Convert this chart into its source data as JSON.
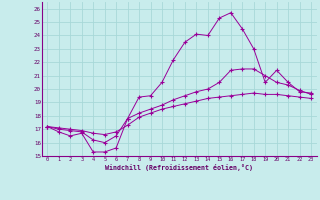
{
  "xlabel": "Windchill (Refroidissement éolien,°C)",
  "bg_color": "#c8ecec",
  "grid_color": "#a8d8d8",
  "line_color": "#990099",
  "xlim": [
    -0.5,
    23.5
  ],
  "ylim": [
    15,
    26.5
  ],
  "xticks": [
    0,
    1,
    2,
    3,
    4,
    5,
    6,
    7,
    8,
    9,
    10,
    11,
    12,
    13,
    14,
    15,
    16,
    17,
    18,
    19,
    20,
    21,
    22,
    23
  ],
  "yticks": [
    15,
    16,
    17,
    18,
    19,
    20,
    21,
    22,
    23,
    24,
    25,
    26
  ],
  "series": [
    [
      17.2,
      16.8,
      16.5,
      16.7,
      15.3,
      15.3,
      15.6,
      17.8,
      19.4,
      19.5,
      20.5,
      22.2,
      23.5,
      24.1,
      24.0,
      25.3,
      25.7,
      24.5,
      23.0,
      20.5,
      21.4,
      20.5,
      19.8,
      19.7
    ],
    [
      17.2,
      17.0,
      16.9,
      16.8,
      16.2,
      16.0,
      16.5,
      17.8,
      18.2,
      18.5,
      18.8,
      19.2,
      19.5,
      19.8,
      20.0,
      20.5,
      21.4,
      21.5,
      21.5,
      21.0,
      20.5,
      20.3,
      19.9,
      19.6
    ],
    [
      17.2,
      17.1,
      17.0,
      16.9,
      16.7,
      16.6,
      16.8,
      17.3,
      17.9,
      18.2,
      18.5,
      18.7,
      18.9,
      19.1,
      19.3,
      19.4,
      19.5,
      19.6,
      19.7,
      19.6,
      19.6,
      19.5,
      19.4,
      19.3
    ]
  ]
}
